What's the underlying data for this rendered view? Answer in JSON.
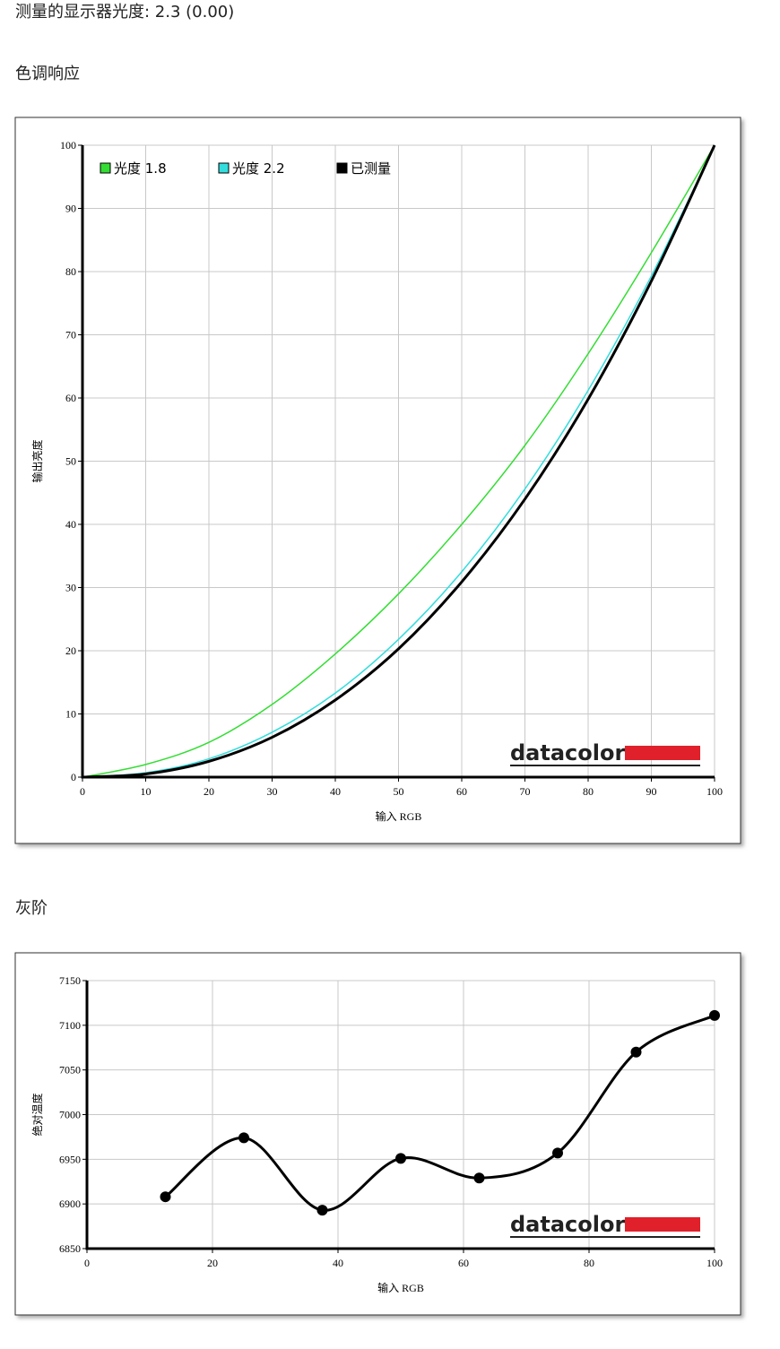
{
  "header": {
    "gamma_text": "测量的显示器光度: 2.3 (0.00)"
  },
  "sections": [
    "色调响应",
    "灰阶"
  ],
  "chart_data": [
    {
      "type": "line",
      "x_label": "输入 RGB",
      "y_label": "输出亮度",
      "logo": "datacolor",
      "x": [
        0,
        10,
        20,
        30,
        40,
        50,
        60,
        70,
        80,
        90,
        100
      ],
      "series": [
        {
          "name": "光度 1.8",
          "color": "#33dd33",
          "values": [
            0,
            2,
            5.5,
            11.5,
            19.5,
            29,
            40,
            52.5,
            67,
            83,
            100
          ]
        },
        {
          "name": "光度 2.2",
          "color": "#33dddd",
          "values": [
            0,
            0.7,
            2.9,
            7.1,
            13.3,
            21.8,
            32.5,
            45.6,
            61.2,
            79.3,
            100
          ]
        },
        {
          "name": "已测量",
          "color": "#000000",
          "values": [
            0,
            0.5,
            2.5,
            6.3,
            12.2,
            20.3,
            30.9,
            44,
            59.8,
            78.5,
            100
          ]
        }
      ],
      "xlim": [
        0,
        100
      ],
      "xticks": [
        0,
        10,
        20,
        30,
        40,
        50,
        60,
        70,
        80,
        90,
        100
      ],
      "ylim": [
        0,
        100
      ],
      "yticks": [
        0,
        10,
        20,
        30,
        40,
        50,
        60,
        70,
        80,
        90,
        100
      ],
      "grid": true,
      "legend": "top-left",
      "markers": false
    },
    {
      "type": "line",
      "x_label": "输入 RGB",
      "y_label": "绝对温度",
      "logo": "datacolor",
      "x": [
        12.5,
        25,
        37.5,
        50,
        62.5,
        75,
        87.5,
        100
      ],
      "series": [
        {
          "color": "#000000",
          "values": [
            6908,
            6974,
            6893,
            6951,
            6929,
            6957,
            7070,
            7111
          ]
        }
      ],
      "xlim": [
        0,
        100
      ],
      "xticks": [
        0,
        20,
        40,
        60,
        80,
        100
      ],
      "ylim": [
        6850,
        7150
      ],
      "yticks": [
        6850,
        6900,
        6950,
        7000,
        7050,
        7100,
        7150
      ],
      "grid": true,
      "markers": true
    }
  ]
}
